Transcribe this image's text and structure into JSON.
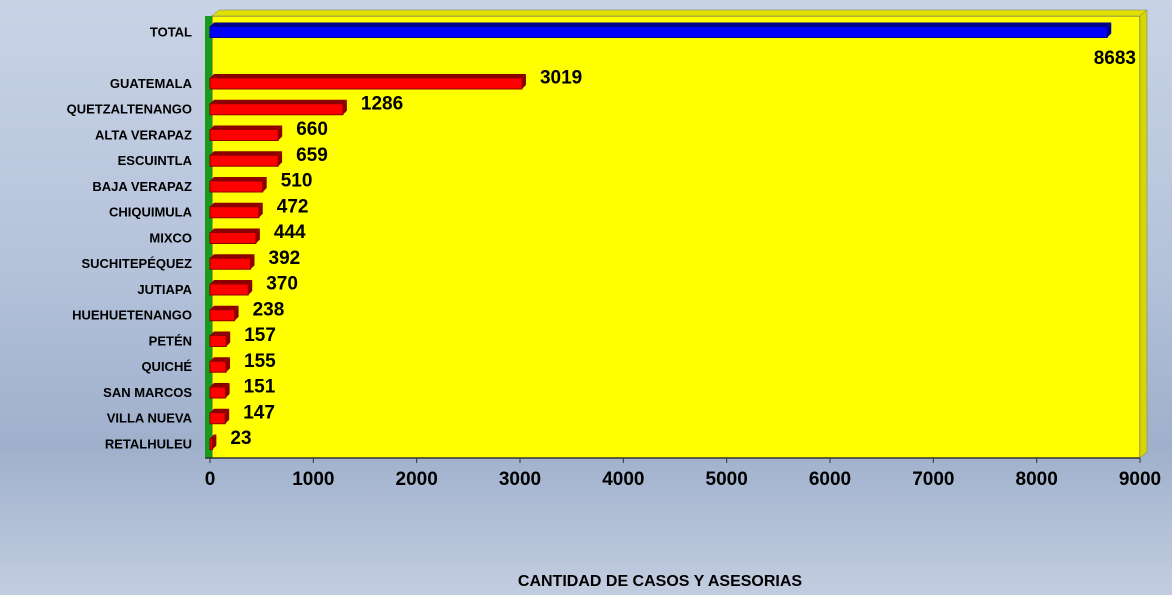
{
  "chart_data": {
    "type": "hbar",
    "x_axis_label": "CANTIDAD DE CASOS Y ASESORIAS",
    "categories": [
      "TOTAL",
      null,
      "GUATEMALA",
      "QUETZALTENANGO",
      "ALTA VERAPAZ",
      "ESCUINTLA",
      "BAJA VERAPAZ",
      "CHIQUIMULA",
      "MIXCO",
      "SUCHITEPÉQUEZ",
      "JUTIAPA",
      "HUEHUETENANGO",
      "PETÉN",
      "QUICHÉ",
      "SAN MARCOS",
      "VILLA NUEVA",
      "RETALHULEU"
    ],
    "values": [
      8683,
      null,
      3019,
      1286,
      660,
      659,
      510,
      472,
      444,
      392,
      370,
      238,
      157,
      155,
      151,
      147,
      23
    ],
    "colors": [
      "#0000ff",
      null,
      "#ff0000",
      "#ff0000",
      "#ff0000",
      "#ff0000",
      "#ff0000",
      "#ff0000",
      "#ff0000",
      "#ff0000",
      "#ff0000",
      "#ff0000",
      "#ff0000",
      "#ff0000",
      "#ff0000",
      "#ff0000",
      "#ff0000"
    ],
    "xlim": [
      0,
      9000
    ],
    "xticks": [
      0,
      1000,
      2000,
      3000,
      4000,
      5000,
      6000,
      7000,
      8000,
      9000
    ]
  }
}
